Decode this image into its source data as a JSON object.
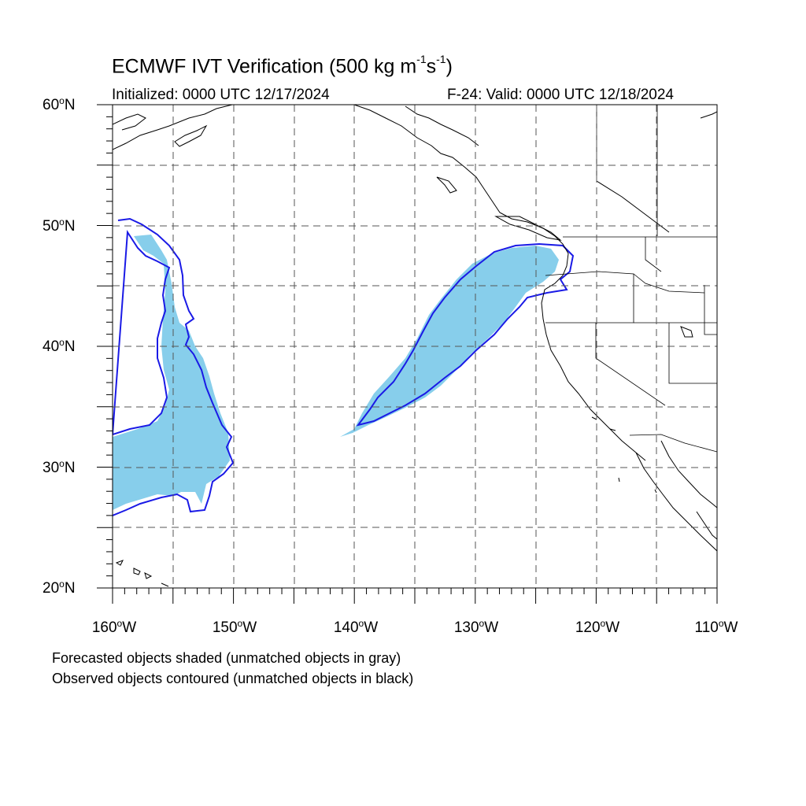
{
  "header": {
    "title_main": "ECMWF IVT Verification (500 kg m",
    "title_sup1": "-1",
    "title_mid": "s",
    "title_sup2": "-1",
    "title_end": ")",
    "initialized": "Initialized: 0000 UTC 12/17/2024",
    "valid": "F-24: Valid: 0000 UTC 12/18/2024"
  },
  "axes": {
    "lat_labels": [
      {
        "value": "60",
        "hemi": "N"
      },
      {
        "value": "50",
        "hemi": "N"
      },
      {
        "value": "40",
        "hemi": "N"
      },
      {
        "value": "30",
        "hemi": "N"
      },
      {
        "value": "20",
        "hemi": "N"
      }
    ],
    "lon_labels": [
      {
        "value": "160",
        "hemi": "W"
      },
      {
        "value": "150",
        "hemi": "W"
      },
      {
        "value": "140",
        "hemi": "W"
      },
      {
        "value": "130",
        "hemi": "W"
      },
      {
        "value": "120",
        "hemi": "W"
      },
      {
        "value": "110",
        "hemi": "W"
      }
    ],
    "lat_range": [
      20,
      60
    ],
    "lon_range": [
      -160,
      -110
    ],
    "grid_spacing_deg": 5,
    "deg_symbol": "o"
  },
  "legend": {
    "line1": "Forecasted objects shaded (unmatched objects in gray)",
    "line2": "Observed objects contoured (unmatched objects in black)"
  },
  "colors": {
    "forecast_fill": "#87ceeb",
    "observed_contour": "#1a1ae6",
    "coastline": "#000000",
    "grid": "#555555"
  }
}
